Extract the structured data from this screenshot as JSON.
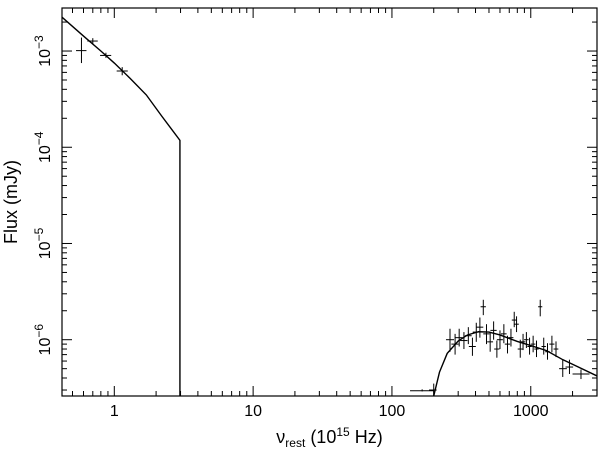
{
  "chart_data": {
    "type": "scatter",
    "title": "",
    "xlabel": {
      "symbol": "ν",
      "subscript": "rest",
      "rest": " (10",
      "superscript": "15",
      "unit": " Hz)"
    },
    "ylabel": "Flux (mJy)",
    "x_scale": "log",
    "y_scale": "log",
    "xlim": [
      0.42,
      3000
    ],
    "ylim": [
      2.6e-07,
      0.0028
    ],
    "x_ticks": [
      {
        "value": 1,
        "label": "1"
      },
      {
        "value": 10,
        "label": "10"
      },
      {
        "value": 100,
        "label": "100"
      },
      {
        "value": 1000,
        "label": "1000"
      }
    ],
    "y_ticks": [
      {
        "value": 0.001,
        "mantissa": "10",
        "exponent": "−3"
      },
      {
        "value": 0.0001,
        "mantissa": "10",
        "exponent": "−4"
      },
      {
        "value": 1e-05,
        "mantissa": "10",
        "exponent": "−5"
      },
      {
        "value": 1e-06,
        "mantissa": "10",
        "exponent": "−6"
      }
    ],
    "grid": false,
    "series": [
      {
        "style": "model-line",
        "points": [
          [
            0.42,
            0.00225
          ],
          [
            0.6,
            0.00143
          ],
          [
            0.8,
            0.001
          ],
          [
            1.0,
            0.00075
          ],
          [
            1.3,
            0.00052
          ],
          [
            1.7,
            0.00035
          ],
          [
            2.2,
            0.00021
          ],
          [
            2.97,
            0.000118
          ],
          [
            2.97,
            2.6e-07
          ]
        ]
      },
      {
        "style": "model-line",
        "points": [
          [
            200,
            2.6e-07
          ],
          [
            220,
            4.6e-07
          ],
          [
            250,
            7.2e-07
          ],
          [
            300,
            9.7e-07
          ],
          [
            350,
            1.12e-06
          ],
          [
            420,
            1.21e-06
          ],
          [
            500,
            1.2e-06
          ],
          [
            600,
            1.12e-06
          ],
          [
            800,
            9.6e-07
          ],
          [
            1000,
            8.7e-07
          ],
          [
            1300,
            7.7e-07
          ],
          [
            1700,
            6.2e-07
          ],
          [
            2200,
            5.2e-07
          ],
          [
            3000,
            4.2e-07
          ]
        ]
      },
      {
        "style": "errorbar-points",
        "points": [
          {
            "x": 0.58,
            "y": 0.00101,
            "x_lo": 0.53,
            "x_hi": 0.63,
            "y_lo": 0.00075,
            "y_hi": 0.00138
          },
          {
            "x": 0.7,
            "y": 0.00127,
            "x_lo": 0.64,
            "x_hi": 0.76,
            "y_lo": 0.00118,
            "y_hi": 0.00136
          },
          {
            "x": 0.87,
            "y": 0.0009,
            "x_lo": 0.79,
            "x_hi": 0.95,
            "y_lo": 0.00085,
            "y_hi": 0.00096
          },
          {
            "x": 1.14,
            "y": 0.00062,
            "x_lo": 1.04,
            "x_hi": 1.25,
            "y_lo": 0.00056,
            "y_hi": 0.00068
          },
          {
            "x": 165,
            "y": 2.95e-07,
            "x_lo": 135,
            "x_hi": 200,
            "y_lo": 2.9e-07,
            "y_hi": 3.05e-07
          },
          {
            "x": 200,
            "y": 3e-07,
            "x_lo": 185,
            "x_hi": 210,
            "y_lo": 2.6e-07,
            "y_hi": 3.5e-07
          },
          {
            "x": 262,
            "y": 1e-06,
            "x_lo": 245,
            "x_hi": 280,
            "y_lo": 7.5e-07,
            "y_hi": 1.3e-06
          },
          {
            "x": 285,
            "y": 9e-07,
            "x_lo": 268,
            "x_hi": 302,
            "y_lo": 7e-07,
            "y_hi": 1.15e-06
          },
          {
            "x": 305,
            "y": 1.05e-06,
            "x_lo": 287,
            "x_hi": 323,
            "y_lo": 8.5e-07,
            "y_hi": 1.3e-06
          },
          {
            "x": 330,
            "y": 9.8e-07,
            "x_lo": 310,
            "x_hi": 350,
            "y_lo": 8e-07,
            "y_hi": 1.2e-06
          },
          {
            "x": 355,
            "y": 1.1e-06,
            "x_lo": 335,
            "x_hi": 375,
            "y_lo": 9e-07,
            "y_hi": 1.35e-06
          },
          {
            "x": 380,
            "y": 8.5e-07,
            "x_lo": 358,
            "x_hi": 402,
            "y_lo": 6.8e-07,
            "y_hi": 1.05e-06
          },
          {
            "x": 405,
            "y": 1.2e-06,
            "x_lo": 382,
            "x_hi": 428,
            "y_lo": 9.5e-07,
            "y_hi": 1.5e-06
          },
          {
            "x": 430,
            "y": 1.35e-06,
            "x_lo": 405,
            "x_hi": 455,
            "y_lo": 1.05e-06,
            "y_hi": 1.7e-06
          },
          {
            "x": 455,
            "y": 2.2e-06,
            "x_lo": 435,
            "x_hi": 475,
            "y_lo": 1.8e-06,
            "y_hi": 2.6e-06
          },
          {
            "x": 480,
            "y": 1.15e-06,
            "x_lo": 455,
            "x_hi": 505,
            "y_lo": 9e-07,
            "y_hi": 1.45e-06
          },
          {
            "x": 510,
            "y": 9.5e-07,
            "x_lo": 485,
            "x_hi": 535,
            "y_lo": 7.5e-07,
            "y_hi": 1.2e-06
          },
          {
            "x": 540,
            "y": 1.25e-06,
            "x_lo": 512,
            "x_hi": 568,
            "y_lo": 1e-06,
            "y_hi": 1.55e-06
          },
          {
            "x": 570,
            "y": 8e-07,
            "x_lo": 545,
            "x_hi": 595,
            "y_lo": 6.5e-07,
            "y_hi": 9.8e-07
          },
          {
            "x": 600,
            "y": 1e-06,
            "x_lo": 570,
            "x_hi": 630,
            "y_lo": 8e-07,
            "y_hi": 1.25e-06
          },
          {
            "x": 640,
            "y": 1.15e-06,
            "x_lo": 610,
            "x_hi": 670,
            "y_lo": 9.2e-07,
            "y_hi": 1.45e-06
          },
          {
            "x": 680,
            "y": 9e-07,
            "x_lo": 650,
            "x_hi": 710,
            "y_lo": 7.2e-07,
            "y_hi": 1.1e-06
          },
          {
            "x": 720,
            "y": 1.05e-06,
            "x_lo": 690,
            "x_hi": 750,
            "y_lo": 8.5e-07,
            "y_hi": 1.3e-06
          },
          {
            "x": 760,
            "y": 1.6e-06,
            "x_lo": 730,
            "x_hi": 790,
            "y_lo": 1.35e-06,
            "y_hi": 1.95e-06
          },
          {
            "x": 790,
            "y": 1.45e-06,
            "x_lo": 760,
            "x_hi": 820,
            "y_lo": 1.2e-06,
            "y_hi": 1.75e-06
          },
          {
            "x": 840,
            "y": 8e-07,
            "x_lo": 805,
            "x_hi": 875,
            "y_lo": 6.5e-07,
            "y_hi": 1e-06
          },
          {
            "x": 880,
            "y": 9.5e-07,
            "x_lo": 845,
            "x_hi": 915,
            "y_lo": 7.8e-07,
            "y_hi": 1.15e-06
          },
          {
            "x": 930,
            "y": 1e-06,
            "x_lo": 895,
            "x_hi": 965,
            "y_lo": 8.2e-07,
            "y_hi": 1.2e-06
          },
          {
            "x": 980,
            "y": 8.5e-07,
            "x_lo": 945,
            "x_hi": 1015,
            "y_lo": 7e-07,
            "y_hi": 1.05e-06
          },
          {
            "x": 1040,
            "y": 9e-07,
            "x_lo": 1000,
            "x_hi": 1080,
            "y_lo": 7.4e-07,
            "y_hi": 1.1e-06
          },
          {
            "x": 1100,
            "y": 8e-07,
            "x_lo": 1060,
            "x_hi": 1140,
            "y_lo": 6.6e-07,
            "y_hi": 9.8e-07
          },
          {
            "x": 1170,
            "y": 2.2e-06,
            "x_lo": 1130,
            "x_hi": 1210,
            "y_lo": 1.75e-06,
            "y_hi": 2.6e-06
          },
          {
            "x": 1240,
            "y": 8.5e-07,
            "x_lo": 1195,
            "x_hi": 1285,
            "y_lo": 7e-07,
            "y_hi": 1.05e-06
          },
          {
            "x": 1320,
            "y": 7.5e-07,
            "x_lo": 1270,
            "x_hi": 1370,
            "y_lo": 6.2e-07,
            "y_hi": 9.2e-07
          },
          {
            "x": 1420,
            "y": 9e-07,
            "x_lo": 1360,
            "x_hi": 1480,
            "y_lo": 7.4e-07,
            "y_hi": 1.1e-06
          },
          {
            "x": 1520,
            "y": 8e-07,
            "x_lo": 1460,
            "x_hi": 1580,
            "y_lo": 6.6e-07,
            "y_hi": 9.6e-07
          },
          {
            "x": 1700,
            "y": 5e-07,
            "x_lo": 1600,
            "x_hi": 1820,
            "y_lo": 4.1e-07,
            "y_hi": 6.2e-07
          },
          {
            "x": 1900,
            "y": 5.2e-07,
            "x_lo": 1780,
            "x_hi": 2020,
            "y_lo": 4.4e-07,
            "y_hi": 6.2e-07
          },
          {
            "x": 2300,
            "y": 4.4e-07,
            "x_lo": 2000,
            "x_hi": 2650,
            "y_lo": 3.9e-07,
            "y_hi": 4.9e-07
          }
        ]
      }
    ]
  }
}
